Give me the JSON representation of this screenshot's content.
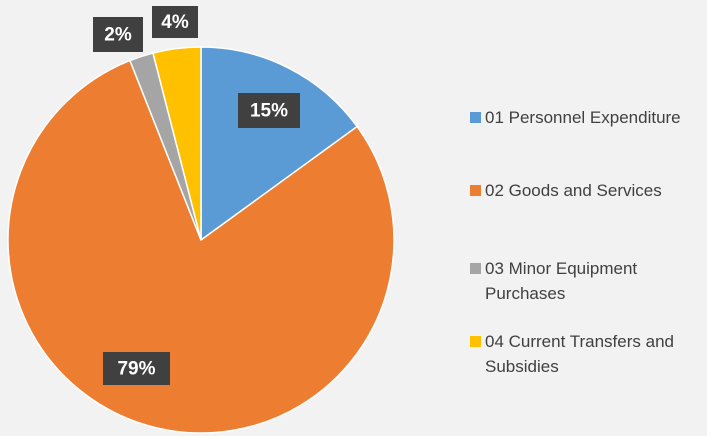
{
  "chart_data": {
    "type": "pie",
    "categories": [
      "01 Personnel Expenditure",
      "02 Goods and Services",
      "03 Minor Equipment Purchases",
      "04 Current Transfers and Subsidies"
    ],
    "values": [
      15,
      79,
      2,
      4
    ],
    "value_labels": [
      "15%",
      "79%",
      "2%",
      "4%"
    ],
    "colors": [
      "#5b9bd5",
      "#ed7d31",
      "#a5a5a5",
      "#ffc000"
    ],
    "legend": "right"
  }
}
